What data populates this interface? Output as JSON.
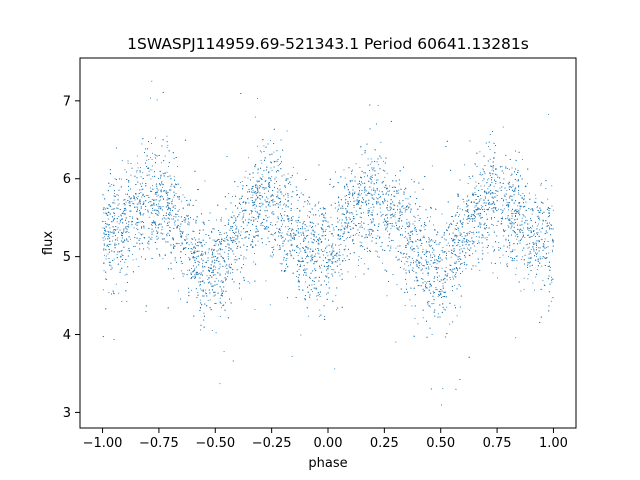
{
  "chart_data": {
    "type": "scatter",
    "title": "1SWASPJ114959.69-521343.1 Period 60641.13281s",
    "xlabel": "phase",
    "ylabel": "flux",
    "xlim": [
      -1.1,
      1.1
    ],
    "ylim": [
      2.8,
      7.55
    ],
    "xticks": [
      -1.0,
      -0.75,
      -0.5,
      -0.25,
      0.0,
      0.25,
      0.5,
      0.75,
      1.0
    ],
    "xtick_labels": [
      "−1.00",
      "−0.75",
      "−0.50",
      "−0.25",
      "0.00",
      "0.25",
      "0.50",
      "0.75",
      "1.00"
    ],
    "yticks": [
      3,
      4,
      5,
      6,
      7
    ],
    "ytick_labels": [
      "3",
      "4",
      "5",
      "6",
      "7"
    ],
    "grid": false,
    "point_color": "#1f77b4",
    "light_curve": {
      "phase": [
        -1.0,
        -0.9,
        -0.8,
        -0.75,
        -0.7,
        -0.65,
        -0.6,
        -0.55,
        -0.5,
        -0.45,
        -0.4,
        -0.35,
        -0.3,
        -0.25,
        -0.2,
        -0.15,
        -0.1,
        -0.05,
        0.0,
        0.05,
        0.1,
        0.15,
        0.2,
        0.25,
        0.3,
        0.35,
        0.4,
        0.45,
        0.5,
        0.55,
        0.6,
        0.65,
        0.7,
        0.75,
        0.8,
        0.85,
        0.9,
        0.95,
        1.0
      ],
      "flux": [
        5.2,
        5.45,
        5.7,
        5.72,
        5.6,
        5.35,
        5.05,
        4.85,
        4.78,
        4.95,
        5.25,
        5.55,
        5.72,
        5.7,
        5.5,
        5.25,
        5.1,
        5.05,
        5.1,
        5.25,
        5.5,
        5.65,
        5.72,
        5.7,
        5.55,
        5.3,
        5.05,
        4.85,
        4.78,
        4.95,
        5.25,
        5.55,
        5.72,
        5.7,
        5.6,
        5.45,
        5.3,
        5.2,
        5.15
      ],
      "scatter_sigma": 0.35,
      "n_points": 9000
    }
  }
}
